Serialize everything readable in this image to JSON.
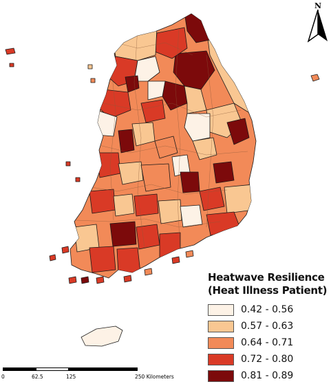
{
  "north_arrow": {
    "letter": "N"
  },
  "legend": {
    "title_line1": "Heatwave Resilience",
    "title_line2": "(Heat Illness Patient)",
    "classes": [
      {
        "label": "0.42 - 0.56",
        "color": "#fdf2e6"
      },
      {
        "label": "0.57 - 0.63",
        "color": "#f9c792"
      },
      {
        "label": "0.64 - 0.71",
        "color": "#f28a58"
      },
      {
        "label": "0.72 - 0.80",
        "color": "#d93a26"
      },
      {
        "label": "0.81 - 0.89",
        "color": "#7c0a0b"
      }
    ]
  },
  "scale_bar": {
    "tick_0": "0",
    "tick_1": "62.5",
    "tick_2": "125",
    "tick_3": "250 Kilometers"
  }
}
